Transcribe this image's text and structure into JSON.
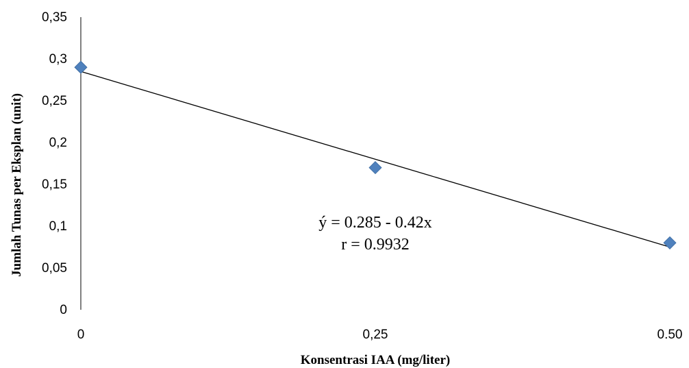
{
  "chart_data": {
    "type": "scatter",
    "xlabel": "Konsentrasi IAA (mg/liter)",
    "ylabel": "Jumlah Tunas per Eksplan (unit)",
    "x_ticks": [
      {
        "value": 0,
        "label": "0"
      },
      {
        "value": 0.25,
        "label": "0,25"
      },
      {
        "value": 0.5,
        "label": "0.50"
      }
    ],
    "y_ticks": [
      {
        "value": 0,
        "label": "0"
      },
      {
        "value": 0.05,
        "label": "0,05"
      },
      {
        "value": 0.1,
        "label": "0,1"
      },
      {
        "value": 0.15,
        "label": "0,15"
      },
      {
        "value": 0.2,
        "label": "0,2"
      },
      {
        "value": 0.25,
        "label": "0,25"
      },
      {
        "value": 0.3,
        "label": "0,3"
      },
      {
        "value": 0.35,
        "label": "0,35"
      }
    ],
    "xlim": [
      0,
      0.5
    ],
    "ylim": [
      0,
      0.35
    ],
    "grid": false,
    "series": [
      {
        "points": [
          {
            "x": 0,
            "y": 0.29
          },
          {
            "x": 0.25,
            "y": 0.17
          },
          {
            "x": 0.5,
            "y": 0.08
          }
        ],
        "marker": "diamond",
        "color": "#4F81BD"
      }
    ],
    "trendline": {
      "intercept": 0.285,
      "slope": -0.42,
      "color": "#000000"
    },
    "annotations": [
      "ý = 0.285 - 0.42x",
      "r = 0.9932"
    ]
  }
}
